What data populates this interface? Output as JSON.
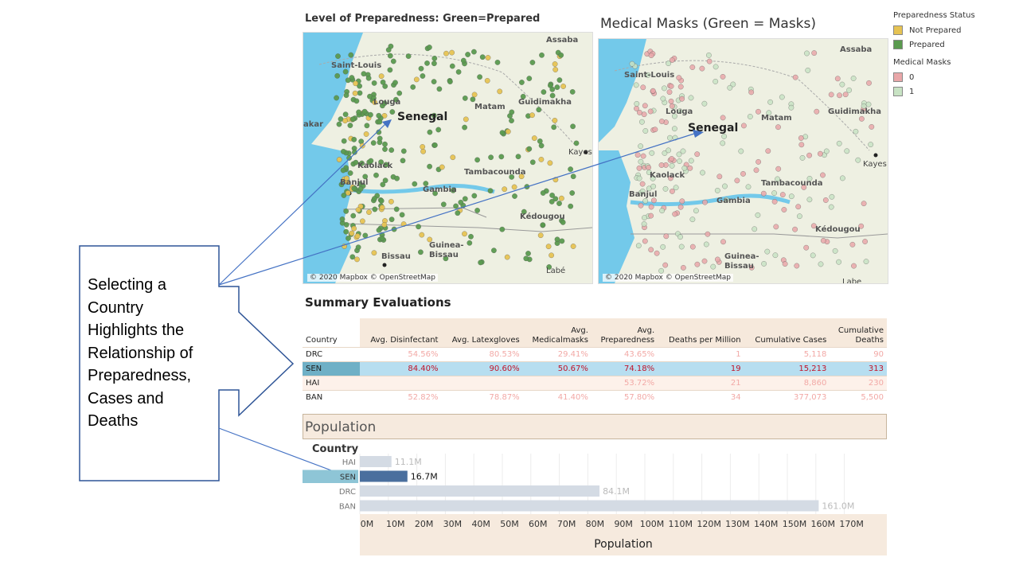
{
  "colors": {
    "prepared": "#5a9a4f",
    "not_prepared": "#e6c353",
    "mask0": "#e9a7a9",
    "mask1": "#c8e3c4",
    "selected_bar": "#4a6f9e",
    "dim_bar": "#d4dbe4",
    "ocean": "#73c9ea",
    "land": "#eef0e2",
    "arrow": "#4472c4"
  },
  "map1": {
    "title": "Level of Preparedness: Green=Prepared",
    "copyright": "© 2020 Mapbox © OpenStreetMap",
    "labels": {
      "assaba": "Assaba",
      "saint_louis": "Saint-Louis",
      "louga": "Louga",
      "senegal": "Senegal",
      "matam": "Matam",
      "guidimakha": "Guidimakha",
      "akar": "akar",
      "kayes": "Kayes",
      "kaolack": "Kaolack",
      "tambacounda": "Tambacounda",
      "banjul": "Banjul",
      "gambia": "Gambia",
      "kedougou": "Kédougou",
      "guinea_bissau": "Guinea-\nBissau",
      "bissau": "Bissau",
      "labe": "Labé"
    }
  },
  "map2": {
    "title": "Medical Masks (Green = Masks)",
    "copyright": "© 2020 Mapbox © OpenStreetMap",
    "labels": {
      "assaba": "Assaba",
      "saint_louis": "Saint-Louis",
      "louga": "Louga",
      "senegal": "Senegal",
      "matam": "Matam",
      "guidimakha": "Guidimakha",
      "kayes": "Kayes",
      "kaolack": "Kaolack",
      "tambacounda": "Tambacounda",
      "banjul": "Banjul",
      "gambia": "Gambia",
      "kedougou": "Kédougou",
      "guinea_bissau": "Guinea-\nBissau",
      "labe": "Labe"
    }
  },
  "legend": {
    "preparedness_title": "Preparedness Status",
    "not_prepared": "Not Prepared",
    "prepared": "Prepared",
    "masks_title": "Medical Masks",
    "mask0": "0",
    "mask1": "1"
  },
  "callout": {
    "lines": [
      "Selecting a",
      "Country",
      "Highlights the",
      "Relationship of",
      "Preparedness,",
      "Cases and",
      "Deaths"
    ]
  },
  "summary": {
    "title": "Summary Evaluations",
    "headers": [
      "Country",
      "Avg. Disinfectant",
      "Avg. Latexgloves",
      "Avg.\nMedicalmasks",
      "Avg.\nPreparedness",
      "Deaths per Million",
      "Cumulative Cases",
      "Cumulative\nDeaths"
    ],
    "rows": [
      {
        "country": "DRC",
        "vals": [
          "54.56%",
          "80.53%",
          "29.41%",
          "43.65%",
          "1",
          "5,118",
          "90"
        ]
      },
      {
        "country": "SEN",
        "vals": [
          "84.40%",
          "90.60%",
          "50.67%",
          "74.18%",
          "19",
          "15,213",
          "313"
        ]
      },
      {
        "country": "HAI",
        "vals": [
          "",
          "",
          "",
          "53.72%",
          "21",
          "8,860",
          "230"
        ]
      },
      {
        "country": "BAN",
        "vals": [
          "52.82%",
          "78.87%",
          "41.40%",
          "57.80%",
          "34",
          "377,073",
          "5,500"
        ]
      }
    ]
  },
  "population": {
    "section_title": "Population",
    "country_header": "Country",
    "xlabel": "Population"
  },
  "chart_data": {
    "type": "bar",
    "orientation": "horizontal",
    "categories": [
      "HAI",
      "SEN",
      "DRC",
      "BAN"
    ],
    "values": [
      11.1,
      16.7,
      84.1,
      161.0
    ],
    "value_labels": [
      "11.1M",
      "16.7M",
      "84.1M",
      "161.0M"
    ],
    "selected": "SEN",
    "xlabel": "Population",
    "xlim": [
      0,
      170
    ],
    "ticks": [
      "0M",
      "10M",
      "20M",
      "30M",
      "40M",
      "50M",
      "60M",
      "70M",
      "80M",
      "90M",
      "100M",
      "110M",
      "120M",
      "130M",
      "140M",
      "150M",
      "160M",
      "170M"
    ],
    "grid": true
  }
}
